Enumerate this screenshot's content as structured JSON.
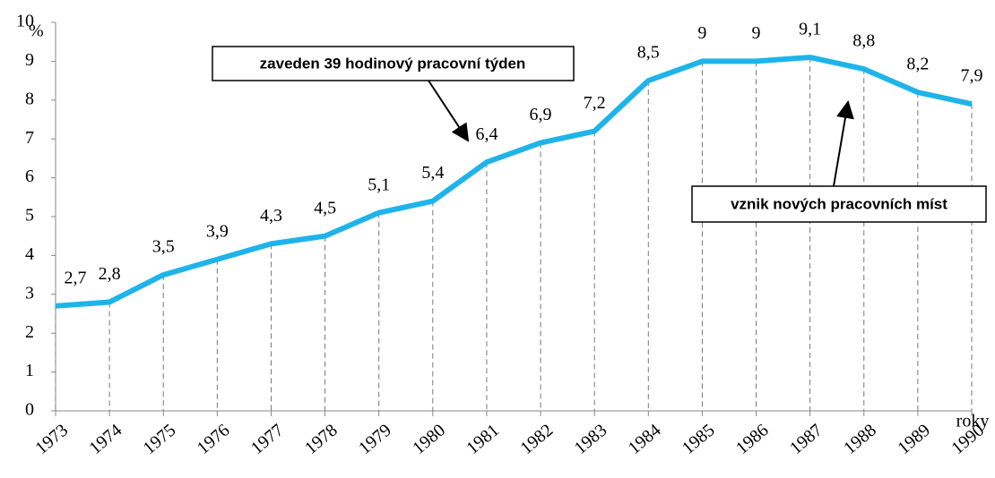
{
  "chart_data": {
    "type": "line",
    "y_label": "%",
    "x_label": "roky",
    "categories": [
      "1973",
      "1974",
      "1975",
      "1976",
      "1977",
      "1978",
      "1979",
      "1980",
      "1981",
      "1982",
      "1983",
      "1984",
      "1985",
      "1986",
      "1987",
      "1988",
      "1989",
      "1990"
    ],
    "values": [
      2.7,
      2.8,
      3.5,
      3.9,
      4.3,
      4.5,
      5.1,
      5.4,
      6.4,
      6.9,
      7.2,
      8.5,
      9,
      9,
      9.1,
      8.8,
      8.2,
      7.9
    ],
    "value_labels": [
      "2,7",
      "2,8",
      "3,5",
      "3,9",
      "4,3",
      "4,5",
      "5,1",
      "5,4",
      "6,4",
      "6,9",
      "7,2",
      "8,5",
      "9",
      "9",
      "9,1",
      "8,8",
      "8,2",
      "7,9"
    ],
    "color": "#1eb4ea",
    "ylim": [
      0,
      10
    ],
    "yticks": [
      0,
      1,
      2,
      3,
      4,
      5,
      6,
      7,
      8,
      9,
      10
    ],
    "droplines": true,
    "annotations": [
      {
        "text": "zaveden 39 hodinový pracovní týden"
      },
      {
        "text": "vznik nových pracovních míst"
      }
    ]
  }
}
